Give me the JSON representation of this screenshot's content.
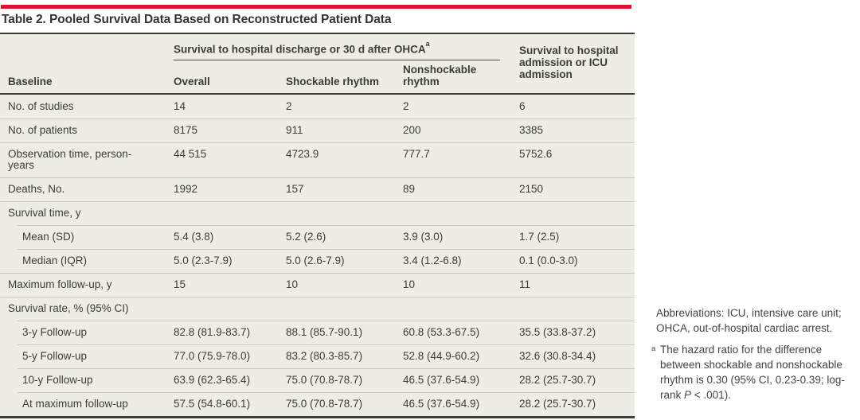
{
  "title": "Table 2. Pooled Survival Data Based on Reconstructed Patient Data",
  "colors": {
    "accent_red": "#d7182f",
    "table_background": "#EDEDE4",
    "rule_dark": "#3c3c3a",
    "hairline": "#c9c9c0",
    "text": "#3d3d39"
  },
  "table": {
    "group_header": {
      "label": "Survival to hospital discharge or 30 d after OHCA",
      "sup": "a"
    },
    "col_headers": [
      "Baseline",
      "Overall",
      "Shockable rhythm",
      "Nonshockable rhythm",
      "Survival to hospital admission or ICU admission"
    ],
    "rows": [
      {
        "type": "data",
        "label": "No. of studies",
        "values": [
          "14",
          "2",
          "2",
          "6"
        ]
      },
      {
        "type": "data",
        "label": "No. of patients",
        "values": [
          "8175",
          "911",
          "200",
          "3385"
        ]
      },
      {
        "type": "data",
        "label": "Observation time, person-years",
        "values": [
          "44 515",
          "4723.9",
          "777.7",
          "5752.6"
        ]
      },
      {
        "type": "data",
        "label": "Deaths, No.",
        "values": [
          "1992",
          "157",
          "89",
          "2150"
        ]
      },
      {
        "type": "section",
        "label": "Survival time, y",
        "values": [
          "",
          "",
          "",
          ""
        ]
      },
      {
        "type": "sub",
        "label": "Mean (SD)",
        "values": [
          "5.4 (3.8)",
          "5.2 (2.6)",
          "3.9 (3.0)",
          "1.7 (2.5)"
        ]
      },
      {
        "type": "sub",
        "label": "Median (IQR)",
        "values": [
          "5.0 (2.3-7.9)",
          "5.0 (2.6-7.9)",
          "3.4 (1.2-6.8)",
          "0.1 (0.0-3.0)"
        ]
      },
      {
        "type": "data",
        "label": "Maximum follow-up, y",
        "values": [
          "15",
          "10",
          "10",
          "11"
        ]
      },
      {
        "type": "section",
        "label": "Survival rate, % (95% CI)",
        "values": [
          "",
          "",
          "",
          ""
        ]
      },
      {
        "type": "sub",
        "label": "3-y Follow-up",
        "values": [
          "82.8 (81.9-83.7)",
          "88.1 (85.7-90.1)",
          "60.8 (53.3-67.5)",
          "35.5 (33.8-37.2)"
        ]
      },
      {
        "type": "sub",
        "label": "5-y Follow-up",
        "values": [
          "77.0 (75.9-78.0)",
          "83.2 (80.3-85.7)",
          "52.8 (44.9-60.2)",
          "32.6 (30.8-34.4)"
        ]
      },
      {
        "type": "sub",
        "label": "10-y Follow-up",
        "values": [
          "63.9 (62.3-65.4)",
          "75.0 (70.8-78.7)",
          "46.5 (37.6-54.9)",
          "28.2 (25.7-30.7)"
        ]
      },
      {
        "type": "sub",
        "label": "At maximum follow-up",
        "values": [
          "57.5 (54.8-60.1)",
          "75.0 (70.8-78.7)",
          "46.5 (37.6-54.9)",
          "28.2 (25.7-30.7)"
        ]
      }
    ]
  },
  "notes": {
    "abbreviations": "Abbreviations: ICU, intensive care unit; OHCA, out-of-hospital cardiac arrest.",
    "footnote": {
      "marker": "a",
      "text_before": "The hazard ratio for the difference between shockable and nonshockable rhythm is 0.30 (95% CI, 0.23-0.39; log-rank ",
      "italic": "P",
      "text_after": " < .001)."
    }
  }
}
